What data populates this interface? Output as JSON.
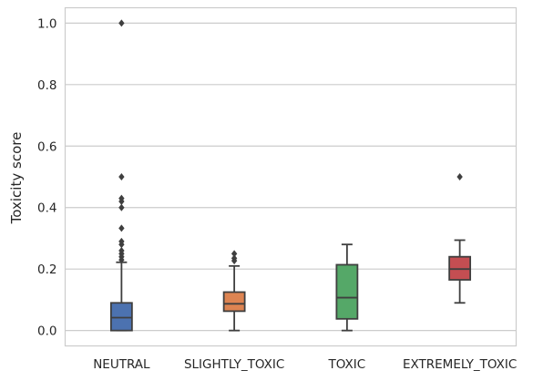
{
  "chart_data": {
    "type": "box",
    "title": "",
    "xlabel": "",
    "ylabel": "Toxicity score",
    "ylim": [
      -0.05,
      1.05
    ],
    "yticks": [
      "0.0",
      "0.2",
      "0.4",
      "0.6",
      "0.8",
      "1.0"
    ],
    "grid": "horizontal",
    "categories": [
      "NEUTRAL",
      "SLIGHTLY_TOXIC",
      "TOXIC",
      "EXTREMELY_TOXIC"
    ],
    "boxes": [
      {
        "category": "NEUTRAL",
        "color": "#4c72b0",
        "whisker_low": 0.0,
        "q1": 0.0,
        "median": 0.042,
        "q3": 0.09,
        "whisker_high": 0.222,
        "outliers": [
          0.23,
          0.24,
          0.25,
          0.26,
          0.28,
          0.29,
          0.333,
          0.4,
          0.42,
          0.43,
          0.5,
          1.0
        ]
      },
      {
        "category": "SLIGHTLY_TOXIC",
        "color": "#dd8452",
        "whisker_low": 0.0,
        "q1": 0.063,
        "median": 0.087,
        "q3": 0.125,
        "whisker_high": 0.21,
        "outliers": [
          0.227,
          0.235,
          0.25
        ]
      },
      {
        "category": "TOXIC",
        "color": "#55a868",
        "whisker_low": 0.0,
        "q1": 0.038,
        "median": 0.107,
        "q3": 0.214,
        "whisker_high": 0.28,
        "outliers": []
      },
      {
        "category": "EXTREMELY_TOXIC",
        "color": "#c44e52",
        "whisker_low": 0.09,
        "q1": 0.165,
        "median": 0.2,
        "q3": 0.24,
        "whisker_high": 0.294,
        "outliers": [
          0.5
        ]
      }
    ]
  }
}
